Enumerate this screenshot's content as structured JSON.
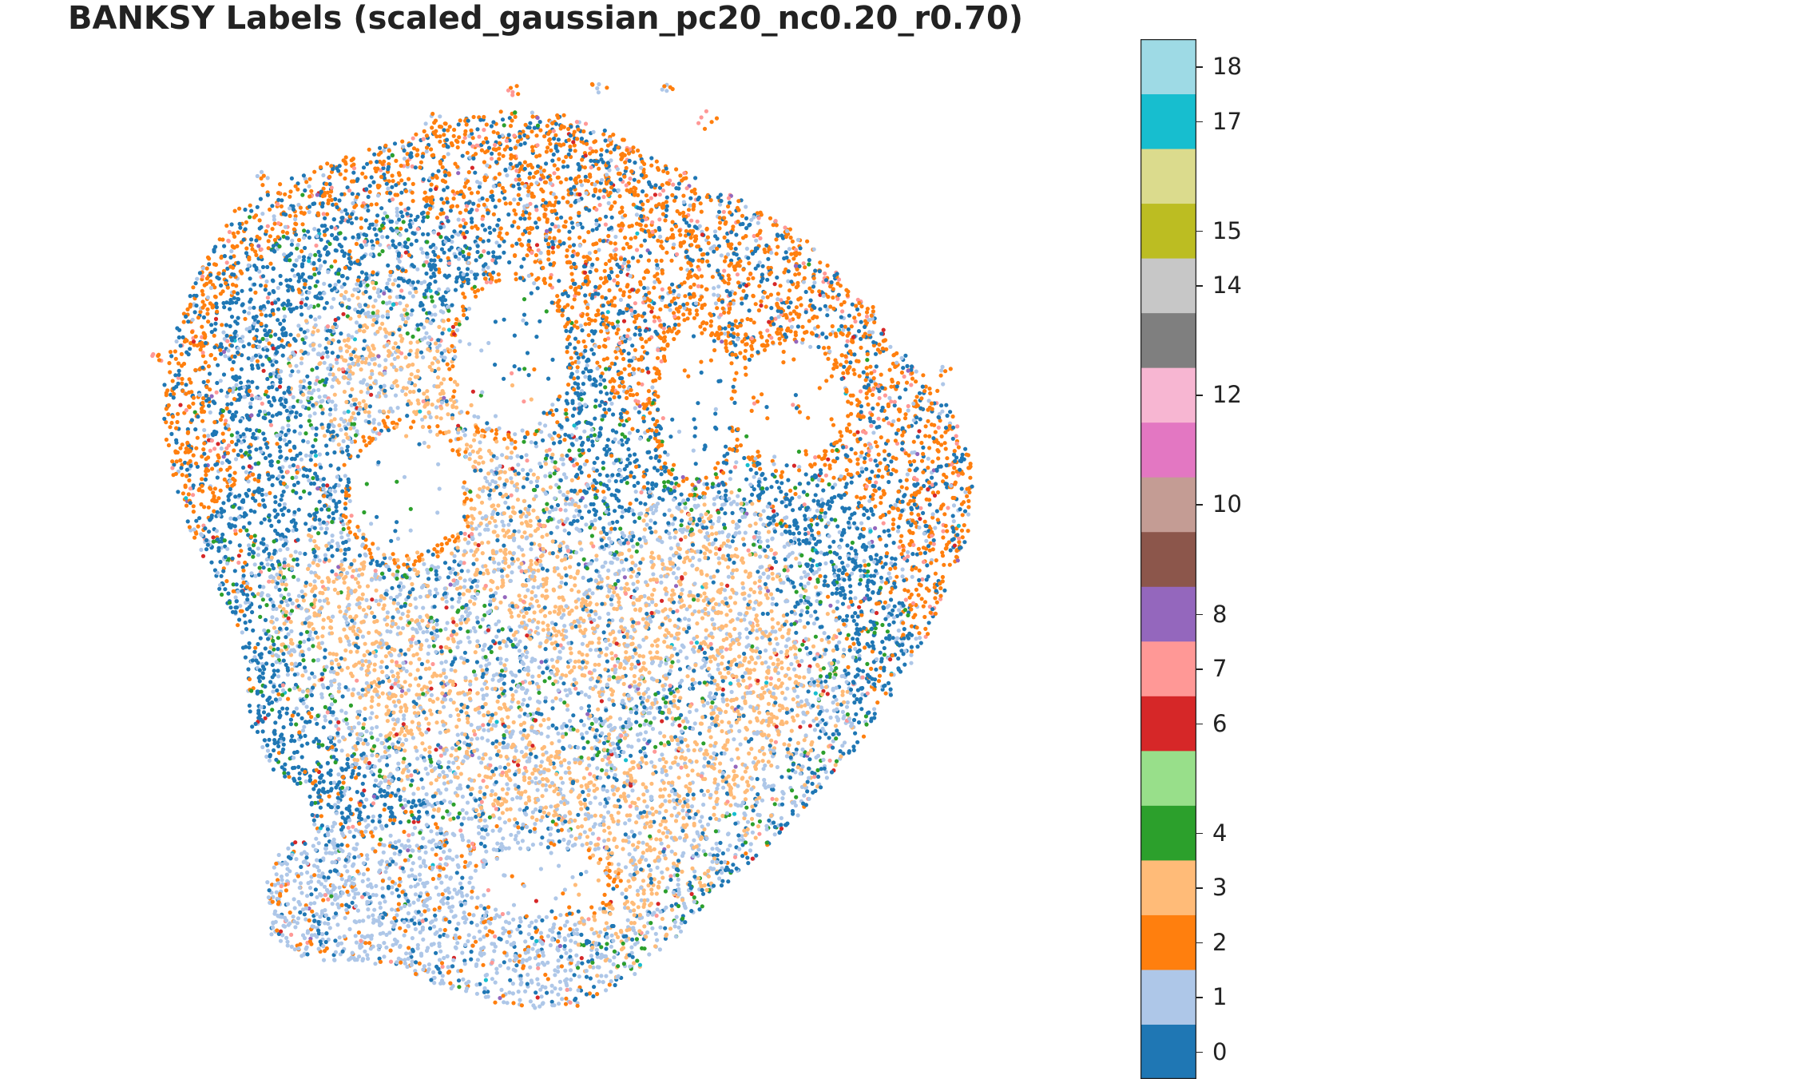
{
  "chart_data": {
    "type": "scatter",
    "title": "BANKSY Labels (scaled_gaussian_pc20_nc0.20_r0.70)",
    "xlabel": "",
    "ylabel": "",
    "axes_visible": false,
    "grid": false,
    "colormap": "tab20",
    "categories": [
      {
        "label": "0",
        "color": "#1f77b4"
      },
      {
        "label": "1",
        "color": "#aec7e8"
      },
      {
        "label": "2",
        "color": "#ff7f0e"
      },
      {
        "label": "3",
        "color": "#ffbb78"
      },
      {
        "label": "4",
        "color": "#2ca02c"
      },
      {
        "label": "5",
        "color": "#98df8a"
      },
      {
        "label": "6",
        "color": "#d62728"
      },
      {
        "label": "7",
        "color": "#ff9896"
      },
      {
        "label": "8",
        "color": "#9467bd"
      },
      {
        "label": "9",
        "color": "#8c564b"
      },
      {
        "label": "10",
        "color": "#c49c94"
      },
      {
        "label": "11",
        "color": "#e377c2"
      },
      {
        "label": "12",
        "color": "#f7b6d2"
      },
      {
        "label": "13",
        "color": "#7f7f7f"
      },
      {
        "label": "14",
        "color": "#c7c7c7"
      },
      {
        "label": "15",
        "color": "#bcbd22"
      },
      {
        "label": "16",
        "color": "#dbdb8d"
      },
      {
        "label": "17",
        "color": "#17becf"
      },
      {
        "label": "18",
        "color": "#9edae5"
      }
    ],
    "colorbar_tick_labels": [
      "0",
      "1",
      "2",
      "3",
      "4",
      "6",
      "7",
      "8",
      "10",
      "12",
      "14",
      "15",
      "17",
      "18"
    ],
    "colorbar_placement": "right"
  }
}
